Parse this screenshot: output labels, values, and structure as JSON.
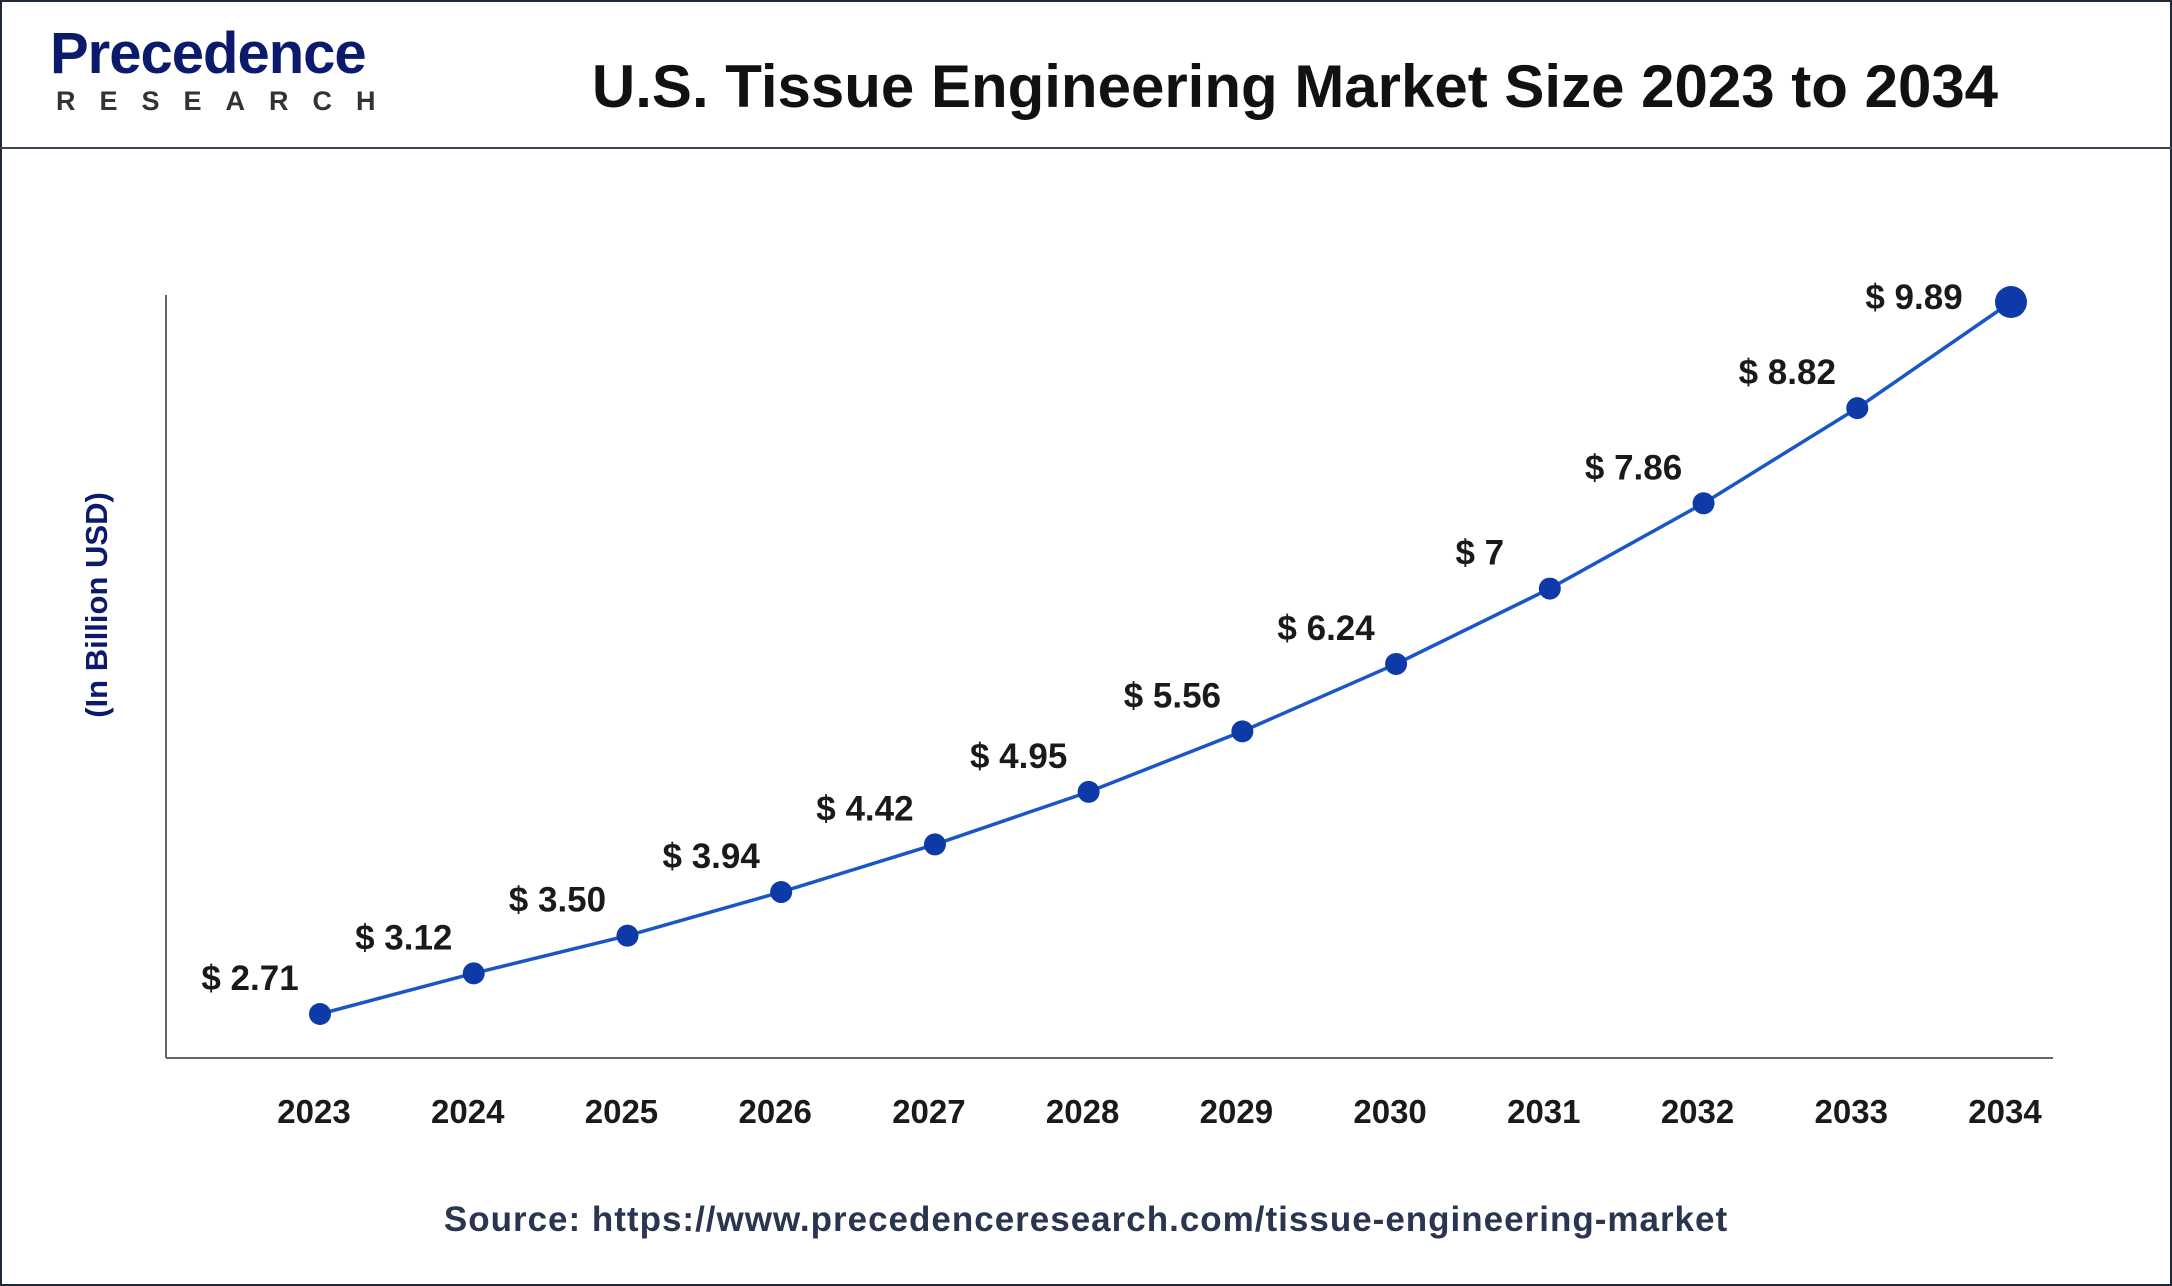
{
  "header": {
    "logo_text": "Precedence",
    "logo_subtext": "RESEARCH",
    "title": "U.S. Tissue Engineering Market Size 2023 to 2034"
  },
  "source": "Source: https://www.precedenceresearch.com/tissue-engineering-market",
  "colors": {
    "line": "#1a56c8",
    "marker": "#0d3aa6",
    "axis": "#666666",
    "text": "#1a1a1a",
    "ylabel": "#0c1a6b"
  },
  "chart_data": {
    "type": "line",
    "title": "U.S. Tissue Engineering Market Size 2023 to 2034",
    "xlabel": "",
    "ylabel": "(In Billion USD)",
    "categories": [
      "2023",
      "2024",
      "2025",
      "2026",
      "2027",
      "2028",
      "2029",
      "2030",
      "2031",
      "2032",
      "2033",
      "2034"
    ],
    "values": [
      2.71,
      3.12,
      3.5,
      3.94,
      4.42,
      4.95,
      5.56,
      6.24,
      7,
      7.86,
      8.82,
      9.89
    ],
    "data_labels": [
      "$ 2.71",
      "$ 3.12",
      "$ 3.50",
      "$ 3.94",
      "$ 4.42",
      "$ 4.95",
      "$ 5.56",
      "$ 6.24",
      "$ 7",
      "$ 7.86",
      "$ 8.82",
      "$ 9.89"
    ],
    "grid": false,
    "legend": "none"
  }
}
